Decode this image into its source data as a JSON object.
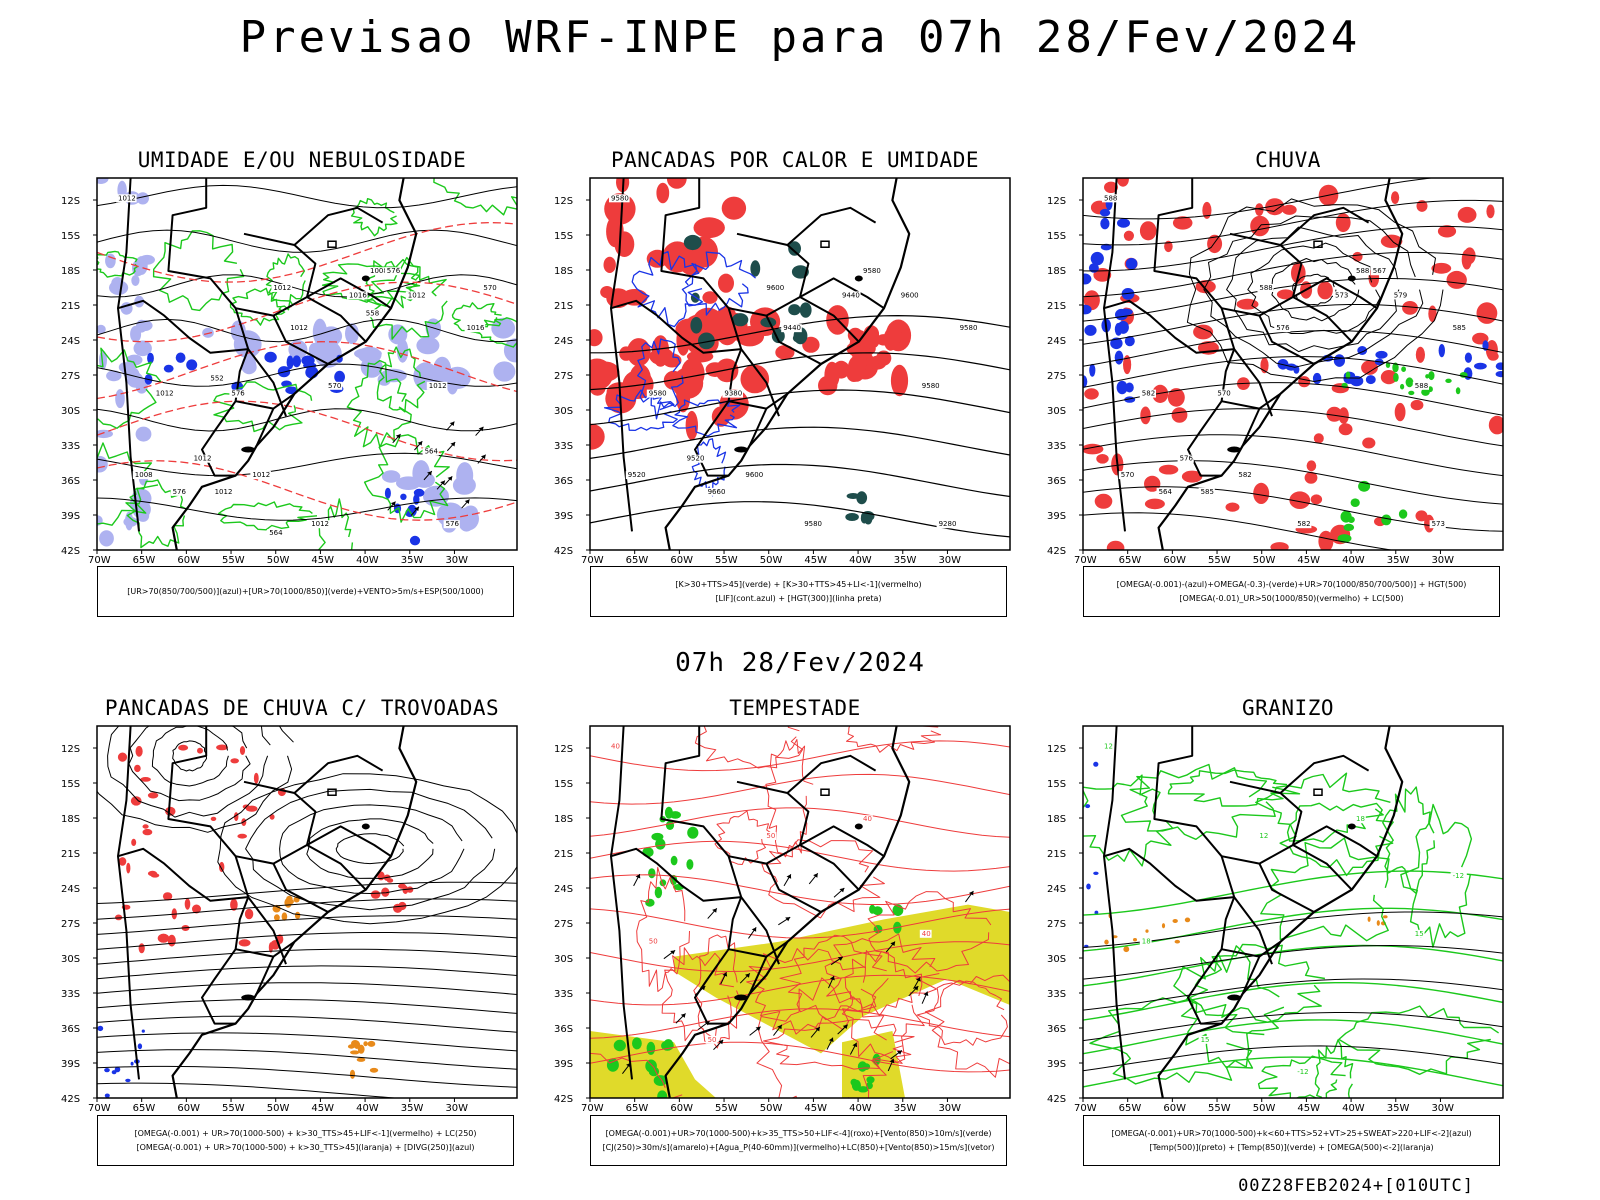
{
  "page": {
    "main_title": "Previsao WRF-INPE  para 07h 28/Fev/2024",
    "subtitle": "07h 28/Fev/2024",
    "footer": "00Z28FEB2024+[010UTC]"
  },
  "colors": {
    "blue": "#1a34e6",
    "lavender": "#aeb2f0",
    "green": "#1cc81c",
    "red": "#ee3c3c",
    "darkgreen": "#1e4d4b",
    "orange": "#e88a1a",
    "yellow": "#e0da2a",
    "black": "#000000"
  },
  "chart_data": [
    {
      "type": "map",
      "title": "UMIDADE E/OU NEBULOSIDADE",
      "legend": [
        "[UR>70(850/700/500)](azul)+[UR>70(1000/850)](verde)+VENTO>5m/s+ESP(500/1000)"
      ],
      "xticks": [
        "70W",
        "65W",
        "60W",
        "55W",
        "50W",
        "45W",
        "40W",
        "35W",
        "30W"
      ],
      "yticks": [
        "12S",
        "15S",
        "18S",
        "21S",
        "24S",
        "27S",
        "30S",
        "33S",
        "36S",
        "39S",
        "42S"
      ],
      "contour_labels": [
        "1012",
        "1012",
        "1012",
        "1012",
        "1008",
        "1012",
        "1012",
        "1016",
        "1012",
        "1012",
        "1012",
        "1016",
        "1008",
        "1012",
        "576",
        "576",
        "576",
        "576",
        "570",
        "570",
        "564",
        "564",
        "552",
        "558"
      ]
    },
    {
      "type": "map",
      "title": "PANCADAS POR CALOR E UMIDADE",
      "legend": [
        "[K>30+TTS>45](verde)  +  [K>30+TTS>45+LI<-1](vermelho)",
        "[LIF](cont.azul)  +  [HGT(300)](linha preta)"
      ],
      "xticks": [
        "70W",
        "65W",
        "60W",
        "55W",
        "50W",
        "45W",
        "40W",
        "35W",
        "30W"
      ],
      "yticks": [
        "12S",
        "15S",
        "18S",
        "21S",
        "24S",
        "27S",
        "30S",
        "33S",
        "36S",
        "39S",
        "42S"
      ],
      "contour_labels": [
        "9580",
        "9600",
        "9580",
        "9660",
        "9580",
        "9580",
        "9580",
        "9580",
        "9600",
        "9600",
        "9520",
        "9440",
        "9520",
        "9440",
        "9280",
        "9380"
      ]
    },
    {
      "type": "map",
      "title": "CHUVA",
      "legend": [
        "[OMEGA(-0.001)-(azul)+OMEGA(-0.3)-(verde)+UR>70(1000/850/700/500)]  +  HGT(500)",
        "[OMEGA(-0.01)_UR>50(1000/850)(vermelho)  +  LC(500)"
      ],
      "xticks": [
        "70W",
        "65W",
        "60W",
        "55W",
        "50W",
        "45W",
        "40W",
        "35W",
        "30W"
      ],
      "yticks": [
        "12S",
        "15S",
        "18S",
        "21S",
        "24S",
        "27S",
        "30S",
        "33S",
        "36S",
        "39S",
        "42S"
      ],
      "contour_labels": [
        "588",
        "588",
        "588",
        "585",
        "588",
        "582",
        "582",
        "585",
        "582",
        "579",
        "576",
        "573",
        "570",
        "576",
        "573",
        "570",
        "567",
        "564"
      ]
    },
    {
      "type": "map",
      "title": "PANCADAS DE CHUVA C/ TROVOADAS",
      "legend": [
        "[OMEGA(-0.001)  +  UR>70(1000-500)  +  k>30_TTS>45+LIF<-1](vermelho)  +  LC(250)",
        "[OMEGA(-0.001)  +  UR>70(1000-500)  +  k>30_TTS>45](laranja)  +  [DIVG(250)](azul)"
      ],
      "xticks": [
        "70W",
        "65W",
        "60W",
        "55W",
        "50W",
        "45W",
        "40W",
        "35W",
        "30W"
      ],
      "yticks": [
        "12S",
        "15S",
        "18S",
        "21S",
        "24S",
        "27S",
        "30S",
        "33S",
        "36S",
        "39S",
        "42S"
      ],
      "contour_labels": []
    },
    {
      "type": "map",
      "title": "TEMPESTADE",
      "legend": [
        "[OMEGA(-0.001)+UR>70(1000-500)+k>35_TTS>50+LIF<-4](roxo)+[Vento(850)>10m/s](verde)",
        "[CJ(250)>30m/s](amarelo)+[Agua_P(40-60mm)](vermelho)+LC(850)+[Vento(850)>15m/s](vetor)"
      ],
      "xticks": [
        "70W",
        "65W",
        "60W",
        "55W",
        "50W",
        "45W",
        "40W",
        "35W",
        "30W"
      ],
      "yticks": [
        "12S",
        "15S",
        "18S",
        "21S",
        "24S",
        "27S",
        "30S",
        "33S",
        "36S",
        "39S",
        "42S"
      ],
      "contour_labels": [
        "40",
        "50",
        "40",
        "50",
        "40",
        "50"
      ]
    },
    {
      "type": "map",
      "title": "GRANIZO",
      "legend": [
        "[OMEGA(-0.001)+UR>70(1000-500)+k<60+TTS>52+VT>25+SWEAT>220+LIF<-2](azul)",
        "[Temp(500)](preto)  +  [Temp(850)](verde)  +  [OMEGA(500)<-2](laranja)"
      ],
      "xticks": [
        "70W",
        "65W",
        "60W",
        "55W",
        "50W",
        "45W",
        "40W",
        "35W",
        "30W"
      ],
      "yticks": [
        "12S",
        "15S",
        "18S",
        "21S",
        "24S",
        "27S",
        "30S",
        "33S",
        "36S",
        "39S",
        "42S"
      ],
      "contour_labels": [
        "12",
        "12",
        "15",
        "15",
        "18",
        "18",
        "-12",
        "-12"
      ]
    }
  ]
}
